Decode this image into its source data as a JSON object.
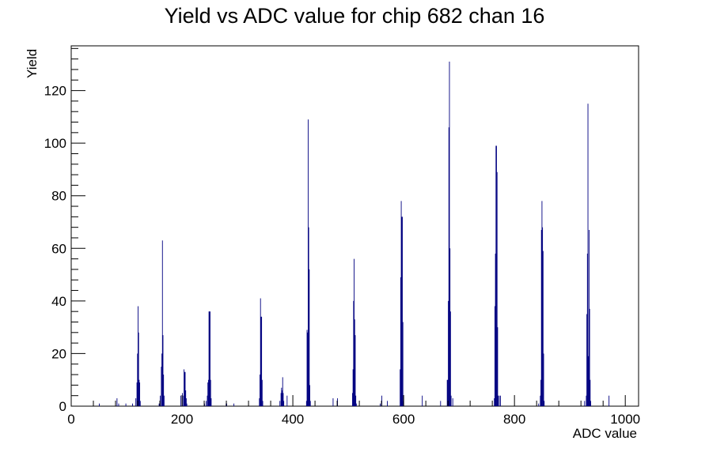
{
  "chart_data": {
    "type": "bar",
    "title": "Yield vs ADC value for chip 682 chan 16",
    "xlabel": "ADC value",
    "ylabel": "Yield",
    "xlim": [
      0,
      1024
    ],
    "ylim": [
      0,
      137
    ],
    "x_ticks": [
      0,
      200,
      400,
      600,
      800,
      1000
    ],
    "y_ticks": [
      0,
      20,
      40,
      60,
      80,
      100,
      120
    ],
    "bin_width": 1,
    "bar_color": "#000080",
    "bins": [
      {
        "x": 50,
        "y": 1
      },
      {
        "x": 82,
        "y": 3
      },
      {
        "x": 85,
        "y": 1
      },
      {
        "x": 98,
        "y": 1
      },
      {
        "x": 110,
        "y": 1
      },
      {
        "x": 116,
        "y": 3
      },
      {
        "x": 118,
        "y": 9
      },
      {
        "x": 119,
        "y": 20
      },
      {
        "x": 120,
        "y": 38
      },
      {
        "x": 121,
        "y": 28
      },
      {
        "x": 122,
        "y": 10
      },
      {
        "x": 123,
        "y": 9
      },
      {
        "x": 124,
        "y": 2
      },
      {
        "x": 158,
        "y": 1
      },
      {
        "x": 160,
        "y": 4
      },
      {
        "x": 162,
        "y": 15
      },
      {
        "x": 163,
        "y": 20
      },
      {
        "x": 164,
        "y": 63
      },
      {
        "x": 165,
        "y": 27
      },
      {
        "x": 166,
        "y": 12
      },
      {
        "x": 167,
        "y": 4
      },
      {
        "x": 197,
        "y": 4
      },
      {
        "x": 200,
        "y": 5
      },
      {
        "x": 202,
        "y": 4
      },
      {
        "x": 203,
        "y": 14
      },
      {
        "x": 204,
        "y": 13
      },
      {
        "x": 205,
        "y": 13
      },
      {
        "x": 206,
        "y": 6
      },
      {
        "x": 207,
        "y": 3
      },
      {
        "x": 208,
        "y": 1
      },
      {
        "x": 240,
        "y": 1
      },
      {
        "x": 243,
        "y": 2
      },
      {
        "x": 245,
        "y": 4
      },
      {
        "x": 246,
        "y": 9
      },
      {
        "x": 247,
        "y": 10
      },
      {
        "x": 248,
        "y": 36
      },
      {
        "x": 249,
        "y": 36
      },
      {
        "x": 250,
        "y": 36
      },
      {
        "x": 251,
        "y": 10
      },
      {
        "x": 252,
        "y": 3
      },
      {
        "x": 279,
        "y": 1
      },
      {
        "x": 280,
        "y": 1
      },
      {
        "x": 293,
        "y": 1
      },
      {
        "x": 339,
        "y": 3
      },
      {
        "x": 340,
        "y": 12
      },
      {
        "x": 341,
        "y": 41
      },
      {
        "x": 342,
        "y": 34
      },
      {
        "x": 343,
        "y": 34
      },
      {
        "x": 344,
        "y": 10
      },
      {
        "x": 345,
        "y": 2
      },
      {
        "x": 376,
        "y": 2
      },
      {
        "x": 378,
        "y": 5
      },
      {
        "x": 379,
        "y": 7
      },
      {
        "x": 380,
        "y": 6
      },
      {
        "x": 381,
        "y": 11
      },
      {
        "x": 382,
        "y": 5
      },
      {
        "x": 383,
        "y": 2
      },
      {
        "x": 389,
        "y": 4
      },
      {
        "x": 424,
        "y": 2
      },
      {
        "x": 425,
        "y": 29
      },
      {
        "x": 426,
        "y": 28
      },
      {
        "x": 427,
        "y": 109
      },
      {
        "x": 428,
        "y": 68
      },
      {
        "x": 429,
        "y": 52
      },
      {
        "x": 430,
        "y": 8
      },
      {
        "x": 431,
        "y": 2
      },
      {
        "x": 472,
        "y": 3
      },
      {
        "x": 480,
        "y": 3
      },
      {
        "x": 507,
        "y": 5
      },
      {
        "x": 508,
        "y": 14
      },
      {
        "x": 509,
        "y": 40
      },
      {
        "x": 510,
        "y": 56
      },
      {
        "x": 511,
        "y": 33
      },
      {
        "x": 512,
        "y": 27
      },
      {
        "x": 513,
        "y": 4
      },
      {
        "x": 514,
        "y": 1
      },
      {
        "x": 557,
        "y": 1
      },
      {
        "x": 560,
        "y": 4
      },
      {
        "x": 570,
        "y": 2
      },
      {
        "x": 593,
        "y": 14
      },
      {
        "x": 594,
        "y": 49
      },
      {
        "x": 595,
        "y": 78
      },
      {
        "x": 596,
        "y": 72
      },
      {
        "x": 597,
        "y": 72
      },
      {
        "x": 598,
        "y": 32
      },
      {
        "x": 599,
        "y": 2
      },
      {
        "x": 633,
        "y": 4
      },
      {
        "x": 666,
        "y": 2
      },
      {
        "x": 678,
        "y": 10
      },
      {
        "x": 679,
        "y": 10
      },
      {
        "x": 680,
        "y": 40
      },
      {
        "x": 681,
        "y": 106
      },
      {
        "x": 682,
        "y": 131
      },
      {
        "x": 683,
        "y": 60
      },
      {
        "x": 684,
        "y": 36
      },
      {
        "x": 685,
        "y": 4
      },
      {
        "x": 688,
        "y": 3
      },
      {
        "x": 763,
        "y": 3
      },
      {
        "x": 764,
        "y": 38
      },
      {
        "x": 765,
        "y": 58
      },
      {
        "x": 766,
        "y": 99
      },
      {
        "x": 767,
        "y": 99
      },
      {
        "x": 768,
        "y": 89
      },
      {
        "x": 769,
        "y": 30
      },
      {
        "x": 770,
        "y": 4
      },
      {
        "x": 772,
        "y": 4
      },
      {
        "x": 774,
        "y": 4
      },
      {
        "x": 843,
        "y": 1
      },
      {
        "x": 846,
        "y": 4
      },
      {
        "x": 847,
        "y": 10
      },
      {
        "x": 848,
        "y": 67
      },
      {
        "x": 849,
        "y": 78
      },
      {
        "x": 850,
        "y": 68
      },
      {
        "x": 851,
        "y": 59
      },
      {
        "x": 852,
        "y": 20
      },
      {
        "x": 853,
        "y": 2
      },
      {
        "x": 926,
        "y": 2
      },
      {
        "x": 929,
        "y": 4
      },
      {
        "x": 930,
        "y": 35
      },
      {
        "x": 931,
        "y": 58
      },
      {
        "x": 932,
        "y": 115
      },
      {
        "x": 933,
        "y": 19
      },
      {
        "x": 934,
        "y": 67
      },
      {
        "x": 935,
        "y": 37
      },
      {
        "x": 936,
        "y": 10
      },
      {
        "x": 937,
        "y": 2
      },
      {
        "x": 970,
        "y": 4
      }
    ]
  }
}
